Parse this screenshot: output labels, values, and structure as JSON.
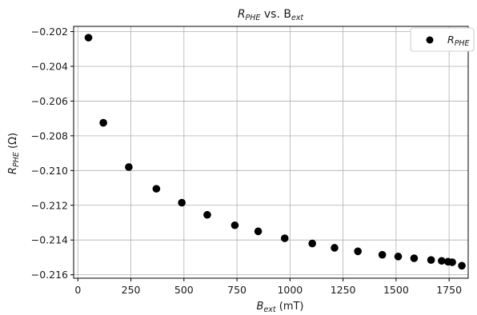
{
  "chart_data": {
    "type": "scatter",
    "title": {
      "main": "R",
      "sub1": "PHE",
      "mid": " vs. B",
      "sub2": "ext"
    },
    "xlabel": {
      "main": "B",
      "sub": "ext",
      "unit": " (mT)"
    },
    "ylabel": {
      "main": "R",
      "sub": "PHE",
      "unit": " (Ω)"
    },
    "xlim": [
      -20,
      1840
    ],
    "ylim": [
      -0.2162,
      -0.2017
    ],
    "xticks": [
      0,
      250,
      500,
      750,
      1000,
      1250,
      1500,
      1750
    ],
    "xtick_labels": [
      "0",
      "250",
      "500",
      "750",
      "1000",
      "1250",
      "1500",
      "1750"
    ],
    "yticks": [
      -0.216,
      -0.214,
      -0.212,
      -0.21,
      -0.208,
      -0.206,
      -0.204,
      -0.202
    ],
    "ytick_labels": [
      "−0.216",
      "−0.214",
      "−0.212",
      "−0.210",
      "−0.208",
      "−0.206",
      "−0.204",
      "−0.202"
    ],
    "grid": true,
    "legend_position": "top-right",
    "series": [
      {
        "name": {
          "main": "R",
          "sub": "PHE"
        },
        "color": "#000000",
        "points": [
          {
            "x": 50,
            "y": -0.20235
          },
          {
            "x": 120,
            "y": -0.20725
          },
          {
            "x": 240,
            "y": -0.2098
          },
          {
            "x": 370,
            "y": -0.21105
          },
          {
            "x": 490,
            "y": -0.21185
          },
          {
            "x": 610,
            "y": -0.21255
          },
          {
            "x": 740,
            "y": -0.21315
          },
          {
            "x": 850,
            "y": -0.2135
          },
          {
            "x": 975,
            "y": -0.2139
          },
          {
            "x": 1105,
            "y": -0.2142
          },
          {
            "x": 1210,
            "y": -0.21445
          },
          {
            "x": 1320,
            "y": -0.21465
          },
          {
            "x": 1435,
            "y": -0.21485
          },
          {
            "x": 1510,
            "y": -0.21495
          },
          {
            "x": 1585,
            "y": -0.21505
          },
          {
            "x": 1665,
            "y": -0.21515
          },
          {
            "x": 1715,
            "y": -0.2152
          },
          {
            "x": 1745,
            "y": -0.21525
          },
          {
            "x": 1765,
            "y": -0.21528
          },
          {
            "x": 1810,
            "y": -0.21548
          }
        ]
      }
    ]
  }
}
